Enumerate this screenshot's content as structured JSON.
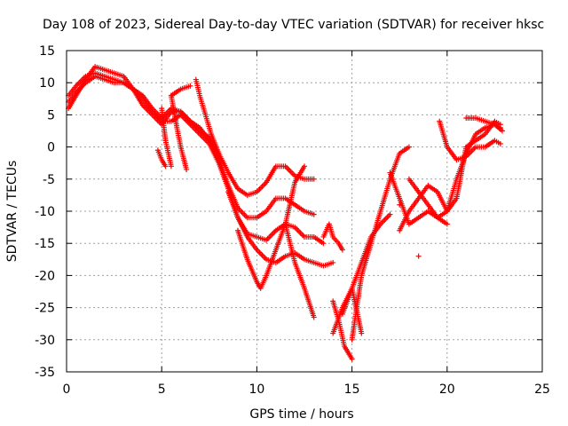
{
  "chart_data": {
    "type": "scatter",
    "title": "Day 108 of 2023, Sidereal Day-to-day VTEC variation (SDTVAR) for receiver hksc",
    "xlabel": "GPS time / hours",
    "ylabel": "SDTVAR / TECUs",
    "xlim": [
      0,
      25
    ],
    "ylim": [
      -35,
      15
    ],
    "xticks": [
      "0",
      "5",
      "10",
      "15",
      "20",
      "25"
    ],
    "yticks": [
      "15",
      "10",
      "5",
      "0",
      "-5",
      "-10",
      "-15",
      "-20",
      "-25",
      "-30",
      "-35"
    ],
    "grid": true,
    "marker": "+",
    "color": "#ff0000",
    "traces": [
      {
        "x": [
          0.1,
          0.5,
          1.0,
          1.5,
          2.0,
          2.5,
          3.0,
          3.5,
          4.0,
          4.5,
          5.0,
          5.5,
          6.0,
          6.5,
          7.0,
          7.5,
          8.0,
          8.5,
          9.0,
          9.5,
          10.0,
          10.5,
          11.0,
          11.5,
          12.0,
          12.5,
          13.0
        ],
        "y": [
          6,
          8,
          10.5,
          12.5,
          12,
          11.5,
          11,
          9,
          6.5,
          5,
          3.5,
          5.5,
          5.5,
          4,
          3,
          1,
          -1,
          -4,
          -6.5,
          -7.5,
          -7,
          -5.5,
          -3,
          -3,
          -4.5,
          -5,
          -5
        ]
      },
      {
        "x": [
          0.1,
          0.5,
          1.0,
          1.5,
          2.0,
          2.5,
          3.0,
          3.5,
          4.0,
          4.5,
          5.0,
          5.5,
          6.0,
          6.5,
          7.0,
          7.5,
          8.0,
          8.5,
          9.0,
          9.5,
          10.0,
          10.5,
          11.0,
          11.5,
          12.0,
          12.5,
          13.0
        ],
        "y": [
          8,
          9.5,
          11,
          11.5,
          11,
          10.5,
          10,
          9,
          8,
          6,
          4.5,
          6,
          5.5,
          4,
          2.5,
          1.5,
          -2,
          -6,
          -9.5,
          -11,
          -11,
          -10,
          -8,
          -8,
          -9,
          -10,
          -10.5
        ]
      },
      {
        "x": [
          0.1,
          0.5,
          1.0,
          1.5,
          2.0,
          2.5,
          3.0,
          3.5,
          4.0,
          4.5,
          5.0,
          5.5,
          6.0,
          6.5,
          7.0,
          7.5,
          8.0,
          8.5,
          9.0,
          9.5,
          10.0,
          10.5,
          11.0,
          11.5,
          12.0,
          12.5,
          13.0,
          13.5
        ],
        "y": [
          7,
          8.5,
          10,
          11,
          10.5,
          10,
          10,
          9,
          7.5,
          5.5,
          4,
          4,
          5,
          3.5,
          2,
          0.5,
          -2.5,
          -6.5,
          -11,
          -13.5,
          -14,
          -14.5,
          -13,
          -12,
          -12.5,
          -14,
          -14,
          -15
        ]
      },
      {
        "x": [
          8.5,
          9.0,
          9.5,
          10.0,
          10.5,
          11.0,
          11.5,
          12.0,
          12.5,
          13.0,
          13.5,
          14.0
        ],
        "y": [
          -7,
          -11,
          -14,
          -16,
          -17.5,
          -18,
          -17,
          -16.5,
          -17.5,
          -18,
          -18.5,
          -18
        ]
      },
      {
        "x": [
          9.0,
          9.5,
          10.0,
          10.2,
          10.5,
          11.0,
          11.5,
          12.0,
          12.5
        ],
        "y": [
          -13,
          -17.5,
          -21,
          -22,
          -20,
          -16,
          -12,
          -5.5,
          -3
        ]
      },
      {
        "x": [
          11.5,
          12.0,
          12.5,
          13.0
        ],
        "y": [
          -12,
          -18,
          -22,
          -26.5
        ]
      },
      {
        "x": [
          14.0,
          14.3,
          14.6,
          15.0
        ],
        "y": [
          -24,
          -27,
          -31,
          -33
        ]
      },
      {
        "x": [
          14.0,
          14.5,
          15.0,
          15.5
        ],
        "y": [
          -29,
          -25,
          -22,
          -29
        ]
      },
      {
        "x": [
          15.0,
          15.5,
          16.0,
          16.5,
          17.0,
          17.5,
          18.0
        ],
        "y": [
          -30,
          -20,
          -15,
          -10,
          -5,
          -1,
          0
        ]
      },
      {
        "x": [
          14.5,
          15.0,
          15.5,
          16.0,
          16.5,
          17.0
        ],
        "y": [
          -26,
          -22,
          -18,
          -14,
          -12,
          -10.5
        ]
      },
      {
        "x": [
          17.0,
          17.5,
          18.0,
          18.5,
          19.0,
          19.5,
          20.0,
          20.5,
          21.0,
          21.5,
          22.0,
          22.5,
          22.8
        ],
        "y": [
          -4,
          -8,
          -12,
          -11,
          -10,
          -11,
          -10,
          -5,
          -1,
          2,
          3,
          3.5,
          3
        ]
      },
      {
        "x": [
          17.5,
          18.0,
          18.5,
          19.0,
          19.5,
          20.0,
          20.5,
          21.0,
          21.5,
          22.0,
          22.5,
          22.8
        ],
        "y": [
          -13,
          -10,
          -8,
          -6,
          -7,
          -10,
          -8,
          0,
          1,
          2,
          4,
          3.5
        ]
      },
      {
        "x": [
          18.0,
          18.5,
          19.0,
          19.5,
          20.0
        ],
        "y": [
          -5,
          -7,
          -9,
          -11,
          -12
        ]
      },
      {
        "x": [
          19.6,
          19.8,
          20.0,
          20.5,
          21.0,
          21.5,
          22.0,
          22.5,
          22.8
        ],
        "y": [
          4,
          2,
          0,
          -2,
          -1.5,
          0,
          0,
          1,
          0.5
        ]
      },
      {
        "x": [
          21.0,
          21.5,
          22.0,
          22.5,
          22.9
        ],
        "y": [
          4.5,
          4.5,
          4,
          3.5,
          2.5
        ]
      },
      {
        "x": [
          5.0,
          5.2,
          5.5
        ],
        "y": [
          6,
          1,
          -3
        ]
      },
      {
        "x": [
          5.5,
          5.8,
          6.0,
          6.3
        ],
        "y": [
          8,
          3,
          0,
          -3.5
        ]
      },
      {
        "x": [
          5.5,
          6.0,
          6.5
        ],
        "y": [
          8,
          9,
          9.5
        ]
      },
      {
        "x": [
          6.8,
          7.0,
          7.3,
          7.6,
          8.0
        ],
        "y": [
          10.5,
          8,
          5,
          2,
          -1
        ]
      },
      {
        "x": [
          13.5,
          13.8,
          14.0,
          14.3,
          14.5
        ],
        "y": [
          -14,
          -12,
          -14,
          -15,
          -16
        ]
      },
      {
        "x": [
          4.8,
          5.0,
          5.2
        ],
        "y": [
          -0.5,
          -2,
          -3
        ]
      }
    ],
    "outliers": [
      {
        "x": 17.5,
        "y": -9
      },
      {
        "x": 18.5,
        "y": -17
      }
    ]
  }
}
